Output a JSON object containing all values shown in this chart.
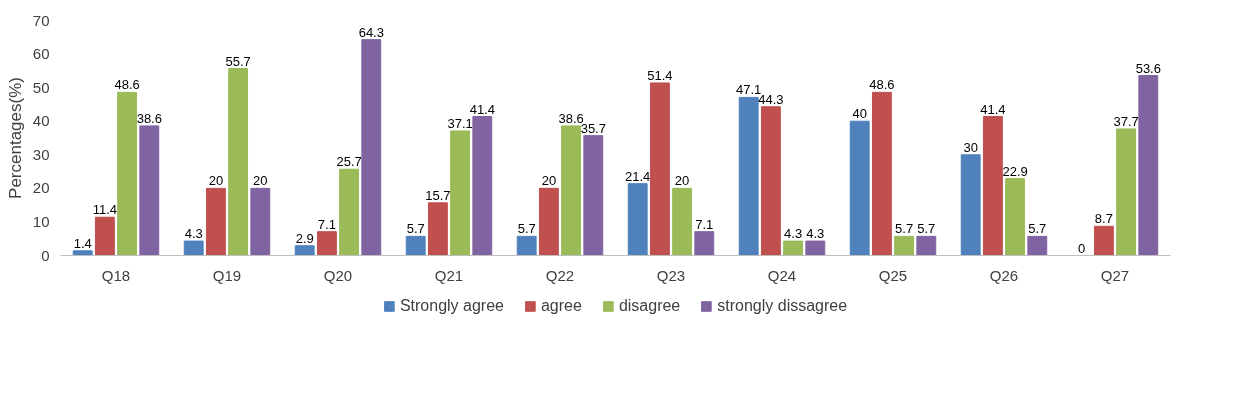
{
  "chart_data": {
    "type": "bar",
    "ylabel": "Percentages(%)",
    "categories": [
      "Q18",
      "Q19",
      "Q20",
      "Q21",
      "Q22",
      "Q23",
      "Q24",
      "Q25",
      "Q26",
      "Q27"
    ],
    "series": [
      {
        "name": "Strongly agree",
        "color": "#4f81bd",
        "values": [
          1.4,
          4.3,
          2.9,
          5.7,
          5.7,
          21.4,
          47.1,
          40,
          30,
          0
        ]
      },
      {
        "name": "agree",
        "color": "#c0504d",
        "values": [
          11.4,
          20,
          7.1,
          15.7,
          20,
          51.4,
          44.3,
          48.6,
          41.4,
          8.7
        ]
      },
      {
        "name": "disagree",
        "color": "#9bbb59",
        "values": [
          48.6,
          55.7,
          25.7,
          37.1,
          38.6,
          20,
          4.3,
          5.7,
          22.9,
          37.7
        ]
      },
      {
        "name": "strongly dissagree",
        "color": "#8064a2",
        "values": [
          38.6,
          20,
          64.3,
          41.4,
          35.7,
          7.1,
          4.3,
          5.7,
          5.7,
          53.6
        ]
      }
    ],
    "ylim": [
      0,
      70
    ],
    "yticks": [
      0,
      10,
      20,
      30,
      40,
      50,
      60,
      70
    ],
    "data_labels": true,
    "legend": "bottom"
  }
}
